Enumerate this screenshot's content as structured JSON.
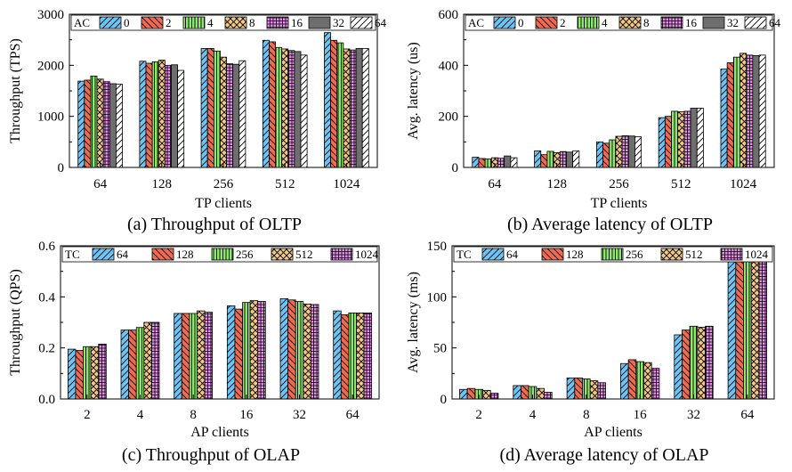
{
  "colors": {
    "blue": "#6cc6f5",
    "red": "#f26b4f",
    "green": "#8fe86e",
    "tan": "#f2c983",
    "violet": "#e28de6",
    "grey": "#6e6e6e",
    "white": "#ffffff"
  },
  "icons": {
    "hatch_forward": "hatch-forward-slash",
    "hatch_back": "hatch-back-slash",
    "hatch_vertical": "hatch-vertical",
    "hatch_cross": "hatch-diagonal-cross",
    "hatch_grid": "hatch-grid"
  },
  "chart_data": [
    {
      "type": "bar",
      "caption": "(a) Throughput of OLTP",
      "xlabel": "TP clients",
      "ylabel": "Throughput (TPS)",
      "ylim": [
        0,
        3000
      ],
      "yticks": [
        "0",
        "1000",
        "2000",
        "3000"
      ],
      "categories": [
        "64",
        "128",
        "256",
        "512",
        "1024"
      ],
      "legend_title": "AC",
      "legend_position": "top",
      "grid": false,
      "series": [
        {
          "name": "0",
          "values": [
            1690,
            2080,
            2330,
            2490,
            2640
          ]
        },
        {
          "name": "2",
          "values": [
            1710,
            2040,
            2330,
            2460,
            2490
          ]
        },
        {
          "name": "4",
          "values": [
            1790,
            2070,
            2280,
            2350,
            2440
          ]
        },
        {
          "name": "8",
          "values": [
            1730,
            2100,
            2160,
            2320,
            2320
          ]
        },
        {
          "name": "16",
          "values": [
            1680,
            2000,
            2030,
            2290,
            2300
          ]
        },
        {
          "name": "32",
          "values": [
            1640,
            2010,
            2020,
            2270,
            2330
          ]
        },
        {
          "name": "64",
          "values": [
            1630,
            1900,
            2090,
            2200,
            2330
          ]
        }
      ]
    },
    {
      "type": "bar",
      "caption": "(b) Average latency of OLTP",
      "xlabel": "TP clients",
      "ylabel": "Avg. latency (us)",
      "ylim": [
        0,
        600
      ],
      "yticks": [
        "0",
        "200",
        "400",
        "600"
      ],
      "categories": [
        "64",
        "128",
        "256",
        "512",
        "1024"
      ],
      "legend_title": "AC",
      "legend_position": "top",
      "grid": false,
      "series": [
        {
          "name": "0",
          "values": [
            40,
            65,
            100,
            195,
            385
          ]
        },
        {
          "name": "2",
          "values": [
            35,
            50,
            95,
            200,
            410
          ]
        },
        {
          "name": "4",
          "values": [
            33,
            63,
            108,
            220,
            432
          ]
        },
        {
          "name": "8",
          "values": [
            38,
            58,
            122,
            218,
            447
          ]
        },
        {
          "name": "16",
          "values": [
            36,
            62,
            124,
            220,
            440
          ]
        },
        {
          "name": "32",
          "values": [
            45,
            60,
            123,
            232,
            438
          ]
        },
        {
          "name": "64",
          "values": [
            38,
            65,
            120,
            232,
            440
          ]
        }
      ]
    },
    {
      "type": "bar",
      "caption": "(c) Throughput of OLAP",
      "xlabel": "AP clients",
      "ylabel": "Throughput (QPS)",
      "ylim": [
        0,
        0.6
      ],
      "yticks": [
        "0.0",
        "0.2",
        "0.4",
        "0.6"
      ],
      "categories": [
        "2",
        "4",
        "8",
        "16",
        "32",
        "64"
      ],
      "legend_title": "TC",
      "legend_position": "top",
      "grid": false,
      "series": [
        {
          "name": "64",
          "values": [
            0.195,
            0.27,
            0.335,
            0.365,
            0.393,
            0.345
          ]
        },
        {
          "name": "128",
          "values": [
            0.19,
            0.27,
            0.335,
            0.352,
            0.388,
            0.33
          ]
        },
        {
          "name": "256",
          "values": [
            0.205,
            0.28,
            0.335,
            0.378,
            0.382,
            0.337
          ]
        },
        {
          "name": "512",
          "values": [
            0.205,
            0.3,
            0.345,
            0.385,
            0.372,
            0.337
          ]
        },
        {
          "name": "1024",
          "values": [
            0.215,
            0.3,
            0.34,
            0.382,
            0.37,
            0.337
          ]
        }
      ]
    },
    {
      "type": "bar",
      "caption": "(d) Average latency of OLAP",
      "xlabel": "AP clients",
      "ylabel": "Avg. latency (ms)",
      "ylim": [
        0,
        160
      ],
      "yticks": [
        "0",
        "50",
        "100",
        "150"
      ],
      "categories": [
        "2",
        "4",
        "8",
        "16",
        "32",
        "64"
      ],
      "legend_title": "TC",
      "legend_position": "top",
      "grid": false,
      "series": [
        {
          "name": "64",
          "values": [
            10,
            14,
            22,
            37,
            67,
            147
          ]
        },
        {
          "name": "128",
          "values": [
            11,
            14,
            22,
            41,
            72,
            148
          ]
        },
        {
          "name": "256",
          "values": [
            10,
            13,
            21,
            39,
            76,
            151
          ]
        },
        {
          "name": "512",
          "values": [
            9,
            11,
            19,
            38,
            75,
            153
          ]
        },
        {
          "name": "1024",
          "values": [
            6,
            7,
            17,
            32,
            76,
            149
          ]
        }
      ]
    }
  ]
}
